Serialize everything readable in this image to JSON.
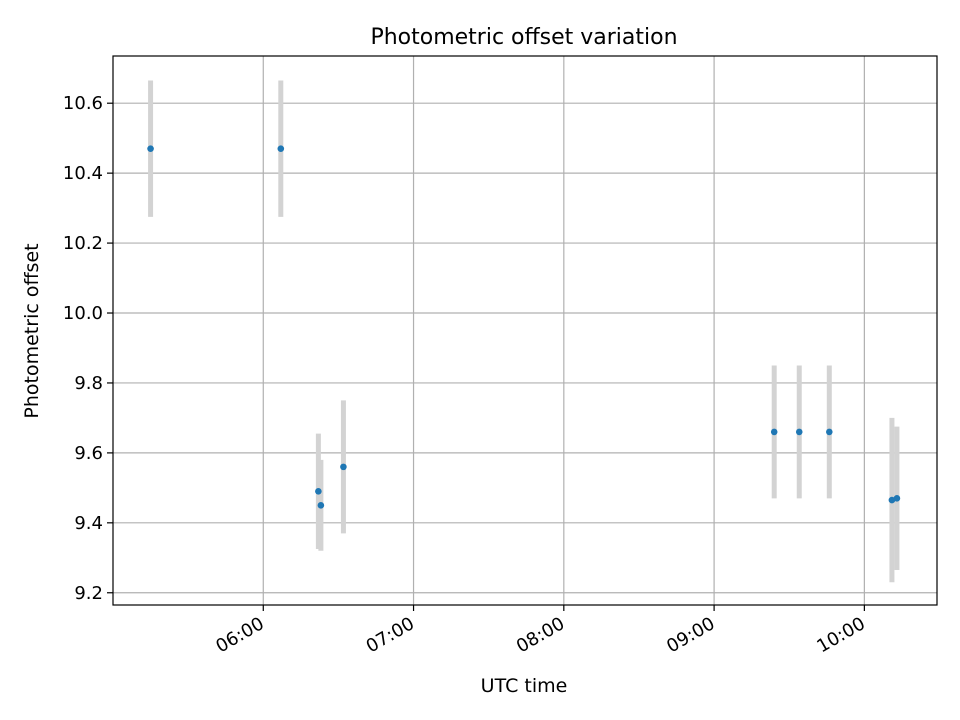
{
  "chart_data": {
    "type": "scatter",
    "title": "Photometric offset variation",
    "xlabel": "UTC time",
    "ylabel": "Photometric offset",
    "x_axis_kind": "time",
    "xlim": [
      "05:00",
      "10:29"
    ],
    "ylim": [
      9.165,
      10.735
    ],
    "x_ticks": [
      "06:00",
      "07:00",
      "08:00",
      "09:00",
      "10:00"
    ],
    "y_ticks": [
      "9.2",
      "9.4",
      "9.6",
      "9.8",
      "10.0",
      "10.2",
      "10.4",
      "10.6"
    ],
    "grid": true,
    "points": [
      {
        "x": "05:15",
        "y": 10.47,
        "err": 0.195
      },
      {
        "x": "06:07",
        "y": 10.47,
        "err": 0.195
      },
      {
        "x": "06:22",
        "y": 9.49,
        "err": 0.165
      },
      {
        "x": "06:23",
        "y": 9.45,
        "err": 0.13
      },
      {
        "x": "06:32",
        "y": 9.56,
        "err": 0.19
      },
      {
        "x": "09:24",
        "y": 9.66,
        "err": 0.19
      },
      {
        "x": "09:34",
        "y": 9.66,
        "err": 0.19
      },
      {
        "x": "09:46",
        "y": 9.66,
        "err": 0.19
      },
      {
        "x": "10:11",
        "y": 9.465,
        "err": 0.235
      },
      {
        "x": "10:13",
        "y": 9.47,
        "err": 0.205
      }
    ],
    "marker_color": "#1f77b4",
    "errorbar_color": "#d3d3d3",
    "grid_color": "#b0b0b0"
  }
}
